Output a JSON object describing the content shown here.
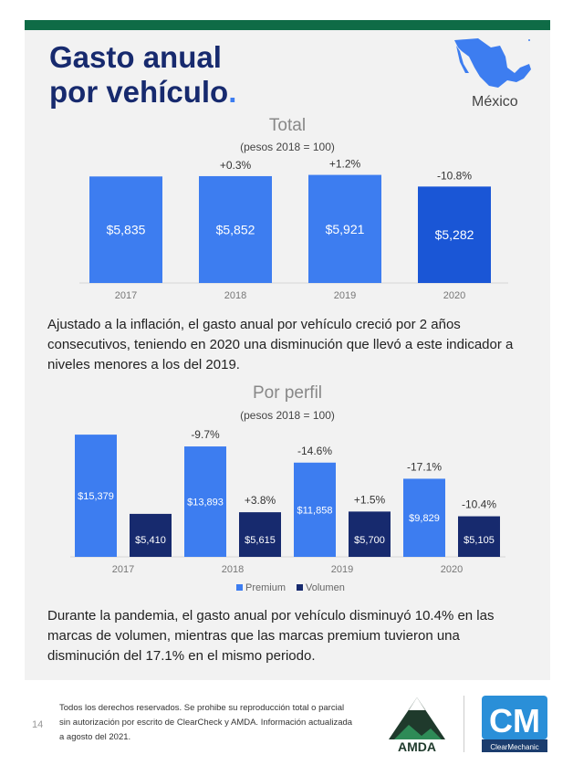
{
  "header": {
    "title_line1": "Gasto anual",
    "title_line2": "por vehículo",
    "title_dot": ".",
    "country": "México"
  },
  "chart_data": [
    {
      "type": "bar",
      "title": "Total",
      "subtitle": "(pesos 2018 = 100)",
      "categories": [
        "2017",
        "2018",
        "2019",
        "2020"
      ],
      "values": [
        5835,
        5852,
        5921,
        5282
      ],
      "value_labels": [
        "$5,835",
        "$5,852",
        "$5,921",
        "$5,282"
      ],
      "change_labels": [
        "",
        "+0.3%",
        "+1.2%",
        "-10.8%"
      ],
      "ylim": [
        0,
        6500
      ],
      "grid": false,
      "colors": [
        "#3d7df0",
        "#3d7df0",
        "#3d7df0",
        "#1a56d6"
      ]
    },
    {
      "type": "bar",
      "title": "Por perfil",
      "subtitle": "(pesos 2018 = 100)",
      "categories": [
        "2017",
        "2018",
        "2019",
        "2020"
      ],
      "series": [
        {
          "name": "Premium",
          "color": "#3d7df0",
          "values": [
            15379,
            13893,
            11858,
            9829
          ],
          "value_labels": [
            "$15,379",
            "$13,893",
            "$11,858",
            "$9,829"
          ],
          "change_labels": [
            "",
            "-9.7%",
            "-14.6%",
            "-17.1%"
          ]
        },
        {
          "name": "Volumen",
          "color": "#172a6e",
          "values": [
            5410,
            5615,
            5700,
            5105
          ],
          "value_labels": [
            "$5,410",
            "$5,615",
            "$5,700",
            "$5,105"
          ],
          "change_labels": [
            "",
            "+3.8%",
            "+1.5%",
            "-10.4%"
          ]
        }
      ],
      "ylim": [
        0,
        17000
      ],
      "legend": "bottom",
      "grid": false
    }
  ],
  "paragraphs": {
    "p1_lines": [
      "Ajustado a la inflación, el gasto anual por vehículo creció por 2 años",
      "consecutivos, teniendo en 2020 una disminución que llevó a este indicador a",
      "niveles menores a los del 2019."
    ],
    "p2_lines": [
      "Durante la pandemia, el gasto anual por vehículo disminuyó 10.4% en las",
      "marcas de volumen, mientras que las marcas premium tuvieron una",
      "disminución del 17.1% en el mismo periodo."
    ]
  },
  "footer": {
    "page_number": "14",
    "rights_lines": [
      "Todos los derechos reservados. Se prohibe su reproducción total o parcial",
      "sin autorización por escrito de ClearCheck y AMDA. Información actualizada",
      "a agosto del 2021."
    ],
    "amda_logo": "AMDA",
    "cm_logo_letters": "CM",
    "cm_logo_name": "ClearMechanic"
  },
  "icons": {
    "map": "mexico-map-icon"
  }
}
